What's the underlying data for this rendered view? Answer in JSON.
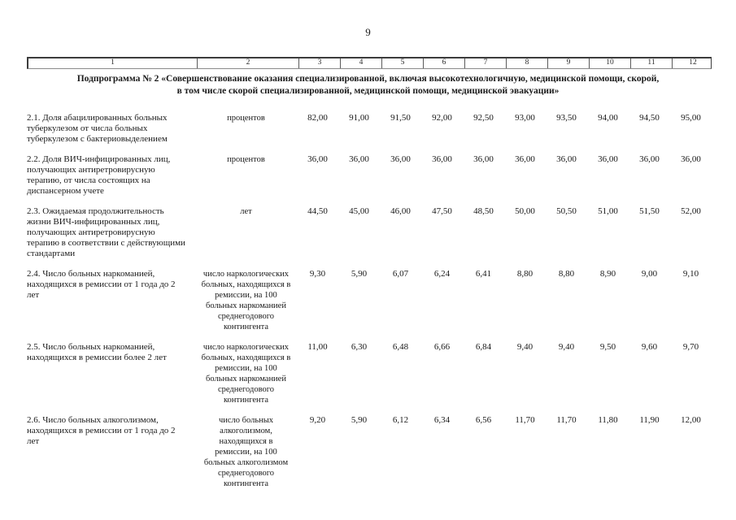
{
  "page": {
    "number": "9"
  },
  "ruler": {
    "columns": [
      "1",
      "2",
      "3",
      "4",
      "5",
      "6",
      "7",
      "8",
      "9",
      "10",
      "11",
      "12"
    ]
  },
  "title": {
    "line1": "Подпрограмма № 2 «Совершенствование оказания специализированной, включая высокотехнологичную, медицинской помощи, скорой,",
    "line2": "в том числе скорой специализированной, медицинской помощи, медицинской эвакуации»"
  },
  "table": {
    "rows": [
      {
        "indicator": "2.1. Доля абацилированных больных туберкулезом от числа больных туберкулезом с бактериовыделением",
        "unit": "процентов",
        "values": [
          "82,00",
          "91,00",
          "91,50",
          "92,00",
          "92,50",
          "93,00",
          "93,50",
          "94,00",
          "94,50",
          "95,00"
        ]
      },
      {
        "indicator": "2.2. Доля ВИЧ-инфицированных лиц, получающих антиретровирусную терапию, от числа состоящих на диспансерном учете",
        "unit": "процентов",
        "values": [
          "36,00",
          "36,00",
          "36,00",
          "36,00",
          "36,00",
          "36,00",
          "36,00",
          "36,00",
          "36,00",
          "36,00"
        ]
      },
      {
        "indicator": "2.3. Ожидаемая продолжительность жизни ВИЧ-инфицированных лиц, получающих антиретровирусную терапию в соответствии с действующими стандартами",
        "unit": "лет",
        "values": [
          "44,50",
          "45,00",
          "46,00",
          "47,50",
          "48,50",
          "50,00",
          "50,50",
          "51,00",
          "51,50",
          "52,00"
        ]
      },
      {
        "indicator": "2.4. Число больных наркоманией, находящихся в ремиссии от 1 года до 2 лет",
        "unit": "число наркологических больных, находящихся в ремиссии, на 100 больных наркоманией среднегодового контингента",
        "values": [
          "9,30",
          "5,90",
          "6,07",
          "6,24",
          "6,41",
          "8,80",
          "8,80",
          "8,90",
          "9,00",
          "9,10"
        ]
      },
      {
        "indicator": "2.5. Число больных наркоманией, находящихся в ремиссии более 2 лет",
        "unit": "число наркологических больных, находящихся в ремиссии, на 100 больных наркоманией среднегодового контингента",
        "values": [
          "11,00",
          "6,30",
          "6,48",
          "6,66",
          "6,84",
          "9,40",
          "9,40",
          "9,50",
          "9,60",
          "9,70"
        ]
      },
      {
        "indicator": "2.6. Число больных алкоголизмом, находящихся в ремиссии от 1 года до 2 лет",
        "unit": "число больных алкоголизмом, находящихся в ремиссии, на 100 больных алкоголизмом среднегодового контингента",
        "values": [
          "9,20",
          "5,90",
          "6,12",
          "6,34",
          "6,56",
          "11,70",
          "11,70",
          "11,80",
          "11,90",
          "12,00"
        ]
      }
    ]
  }
}
